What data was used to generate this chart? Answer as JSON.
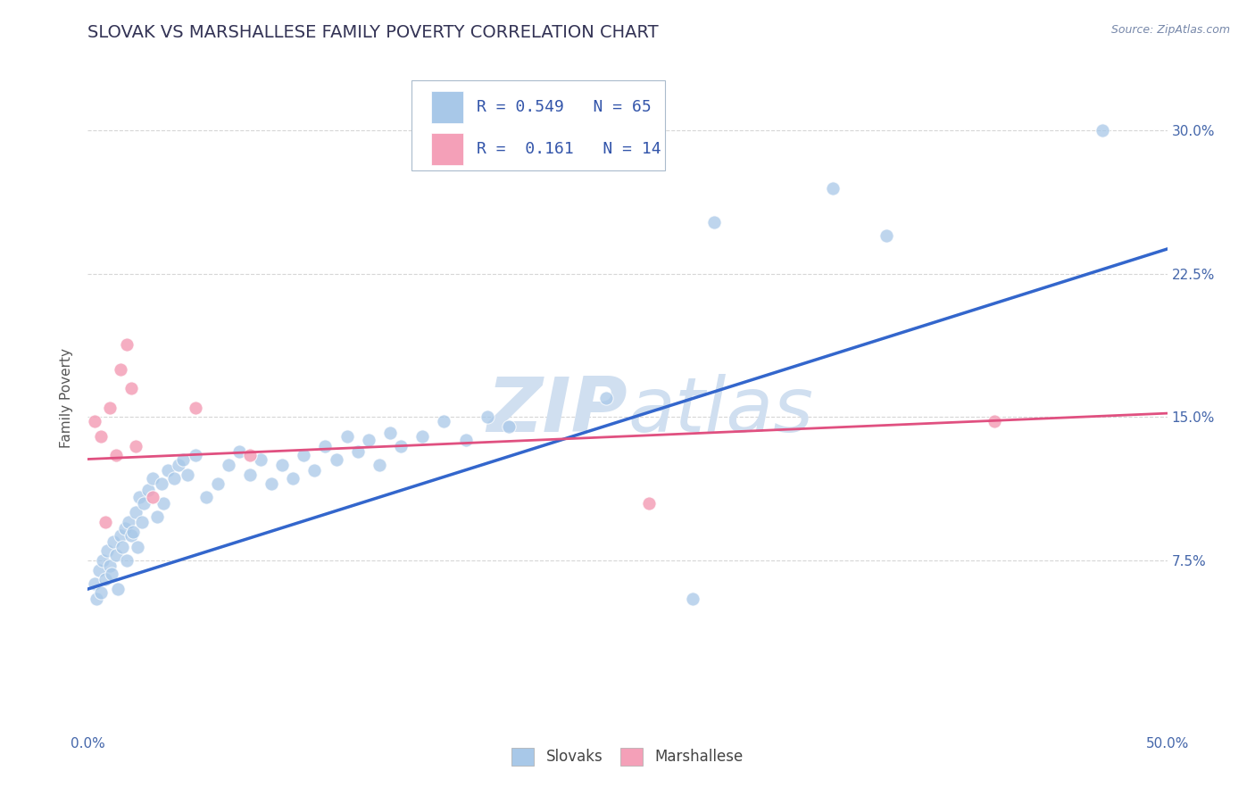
{
  "title": "SLOVAK VS MARSHALLESE FAMILY POVERTY CORRELATION CHART",
  "source": "Source: ZipAtlas.com",
  "ylabel": "Family Poverty",
  "xlim": [
    0.0,
    0.5
  ],
  "ylim": [
    -0.015,
    0.335
  ],
  "xtick_positions": [
    0.0,
    0.1,
    0.2,
    0.3,
    0.4,
    0.5
  ],
  "xticklabels": [
    "0.0%",
    "",
    "",
    "",
    "",
    "50.0%"
  ],
  "ytick_positions": [
    0.075,
    0.15,
    0.225,
    0.3
  ],
  "yticklabels": [
    "7.5%",
    "15.0%",
    "22.5%",
    "30.0%"
  ],
  "slovak_color": "#a8c8e8",
  "marshallese_color": "#f4a0b8",
  "slovak_line_color": "#3366cc",
  "marshallese_line_color": "#e05080",
  "watermark_color": "#d0dff0",
  "legend_r_slovak": "0.549",
  "legend_n_slovak": "65",
  "legend_r_marshallese": "0.161",
  "legend_n_marshallese": "14",
  "slovak_line": [
    [
      0.0,
      0.06
    ],
    [
      0.5,
      0.238
    ]
  ],
  "marshallese_line": [
    [
      0.0,
      0.128
    ],
    [
      0.5,
      0.152
    ]
  ],
  "slovak_points": [
    [
      0.003,
      0.063
    ],
    [
      0.004,
      0.055
    ],
    [
      0.005,
      0.07
    ],
    [
      0.006,
      0.058
    ],
    [
      0.007,
      0.075
    ],
    [
      0.008,
      0.065
    ],
    [
      0.009,
      0.08
    ],
    [
      0.01,
      0.072
    ],
    [
      0.011,
      0.068
    ],
    [
      0.012,
      0.085
    ],
    [
      0.013,
      0.078
    ],
    [
      0.014,
      0.06
    ],
    [
      0.015,
      0.088
    ],
    [
      0.016,
      0.082
    ],
    [
      0.017,
      0.092
    ],
    [
      0.018,
      0.075
    ],
    [
      0.019,
      0.095
    ],
    [
      0.02,
      0.088
    ],
    [
      0.021,
      0.09
    ],
    [
      0.022,
      0.1
    ],
    [
      0.023,
      0.082
    ],
    [
      0.024,
      0.108
    ],
    [
      0.025,
      0.095
    ],
    [
      0.026,
      0.105
    ],
    [
      0.028,
      0.112
    ],
    [
      0.03,
      0.118
    ],
    [
      0.032,
      0.098
    ],
    [
      0.034,
      0.115
    ],
    [
      0.035,
      0.105
    ],
    [
      0.037,
      0.122
    ],
    [
      0.04,
      0.118
    ],
    [
      0.042,
      0.125
    ],
    [
      0.044,
      0.128
    ],
    [
      0.046,
      0.12
    ],
    [
      0.05,
      0.13
    ],
    [
      0.055,
      0.108
    ],
    [
      0.06,
      0.115
    ],
    [
      0.065,
      0.125
    ],
    [
      0.07,
      0.132
    ],
    [
      0.075,
      0.12
    ],
    [
      0.08,
      0.128
    ],
    [
      0.085,
      0.115
    ],
    [
      0.09,
      0.125
    ],
    [
      0.095,
      0.118
    ],
    [
      0.1,
      0.13
    ],
    [
      0.105,
      0.122
    ],
    [
      0.11,
      0.135
    ],
    [
      0.115,
      0.128
    ],
    [
      0.12,
      0.14
    ],
    [
      0.125,
      0.132
    ],
    [
      0.13,
      0.138
    ],
    [
      0.135,
      0.125
    ],
    [
      0.14,
      0.142
    ],
    [
      0.145,
      0.135
    ],
    [
      0.155,
      0.14
    ],
    [
      0.165,
      0.148
    ],
    [
      0.175,
      0.138
    ],
    [
      0.185,
      0.15
    ],
    [
      0.195,
      0.145
    ],
    [
      0.24,
      0.16
    ],
    [
      0.29,
      0.252
    ],
    [
      0.345,
      0.27
    ],
    [
      0.37,
      0.245
    ],
    [
      0.47,
      0.3
    ],
    [
      0.28,
      0.055
    ]
  ],
  "marshallese_points": [
    [
      0.003,
      0.148
    ],
    [
      0.006,
      0.14
    ],
    [
      0.008,
      0.095
    ],
    [
      0.01,
      0.155
    ],
    [
      0.013,
      0.13
    ],
    [
      0.015,
      0.175
    ],
    [
      0.018,
      0.188
    ],
    [
      0.02,
      0.165
    ],
    [
      0.022,
      0.135
    ],
    [
      0.03,
      0.108
    ],
    [
      0.05,
      0.155
    ],
    [
      0.075,
      0.13
    ],
    [
      0.42,
      0.148
    ],
    [
      0.26,
      0.105
    ]
  ],
  "title_color": "#333355",
  "title_fontsize": 14,
  "axis_label_color": "#555555",
  "tick_color": "#4466aa",
  "tick_fontsize": 11,
  "grid_color": "#cccccc",
  "background_color": "#ffffff",
  "legend_fontsize": 13,
  "point_size": 120
}
